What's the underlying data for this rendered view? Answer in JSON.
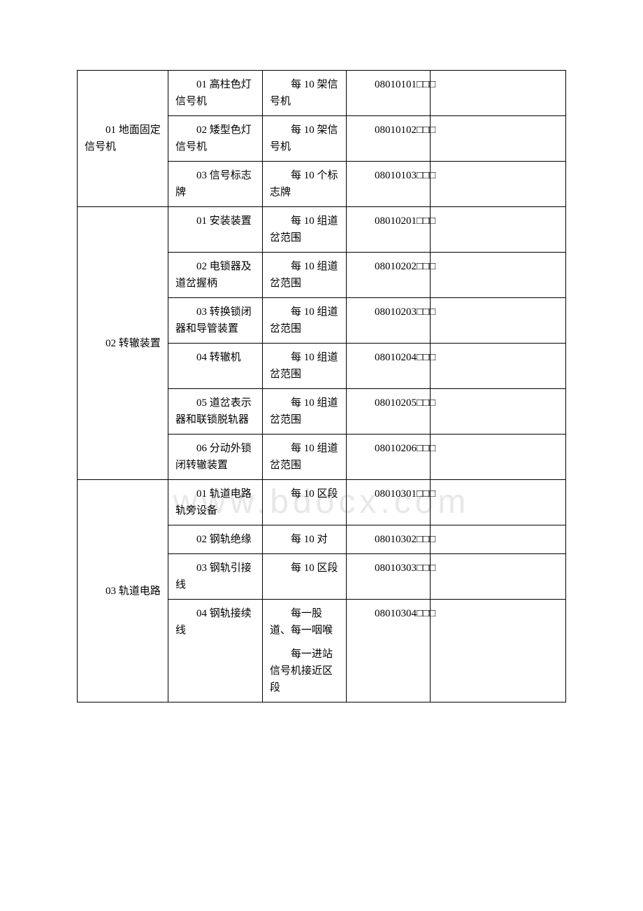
{
  "table": {
    "groups": [
      {
        "col1": "01 地面固定信号机",
        "rows": [
          {
            "col2": "01 高柱色灯信号机",
            "col3": "每 10 架信号机",
            "col4": "08010101□□□",
            "col5": ""
          },
          {
            "col2": "02 矮型色灯信号机",
            "col3": "每 10 架信号机",
            "col4": "08010102□□□",
            "col5": ""
          },
          {
            "col2": "03 信号标志牌",
            "col3": "每 10 个标志牌",
            "col4": "08010103□□□",
            "col5": ""
          }
        ]
      },
      {
        "col1": "02 转辙装置",
        "rows": [
          {
            "col2": "01 安装装置",
            "col3": "每 10 组道岔范围",
            "col4": "08010201□□□",
            "col5": ""
          },
          {
            "col2": "02 电锁器及道岔握柄",
            "col3": "每 10 组道岔范围",
            "col4": "08010202□□□",
            "col5": ""
          },
          {
            "col2": "03 转换锁闭器和导管装置",
            "col3": "每 10 组道岔范围",
            "col4": "08010203□□□",
            "col5": ""
          },
          {
            "col2": "04 转辙机",
            "col3": "每 10 组道岔范围",
            "col4": "08010204□□□",
            "col5": ""
          },
          {
            "col2": "05 道岔表示器和联锁脱轨器",
            "col3": "每 10 组道岔范围",
            "col4": "08010205□□□",
            "col5": ""
          },
          {
            "col2": "06 分动外锁闭转辙装置",
            "col3": "每 10 组道岔范围",
            "col4": "08010206□□□",
            "col5": ""
          }
        ]
      },
      {
        "col1": "03 轨道电路",
        "rows": [
          {
            "col2": "01 轨道电路轨旁设备",
            "col3": "每 10 区段",
            "col4": "08010301□□□",
            "col5": ""
          },
          {
            "col2": "02 钢轨绝缘",
            "col3": "每 10 对",
            "col4": "08010302□□□",
            "col5": ""
          },
          {
            "col2": "03 钢轨引接线",
            "col3": "每 10 区段",
            "col4": "08010303□□□",
            "col5": ""
          },
          {
            "col2": "04 钢轨接续线",
            "col3_multi": [
              "每一股道、每一咽喉",
              "每一进站信号机接近区段"
            ],
            "col4": "08010304□□□",
            "col5": ""
          }
        ]
      }
    ]
  },
  "watermark": "www.bdocx.com"
}
